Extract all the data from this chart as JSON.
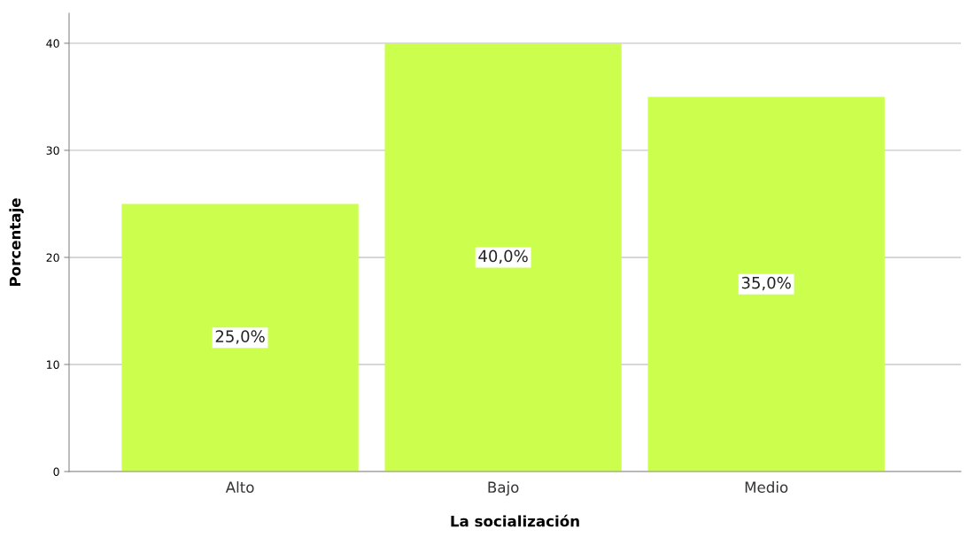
{
  "chart_data": {
    "type": "bar",
    "xlabel": "La socialización",
    "ylabel": "Porcentaje",
    "categories": [
      "Alto",
      "Bajo",
      "Medio"
    ],
    "values": [
      25,
      40,
      35
    ],
    "value_labels": [
      "25,0%",
      "40,0%",
      "35,0%"
    ],
    "color": "#ccff4d",
    "ylim": [
      0,
      42.8
    ],
    "yticks": [
      0,
      10,
      20,
      30,
      40
    ],
    "grid": "y"
  }
}
